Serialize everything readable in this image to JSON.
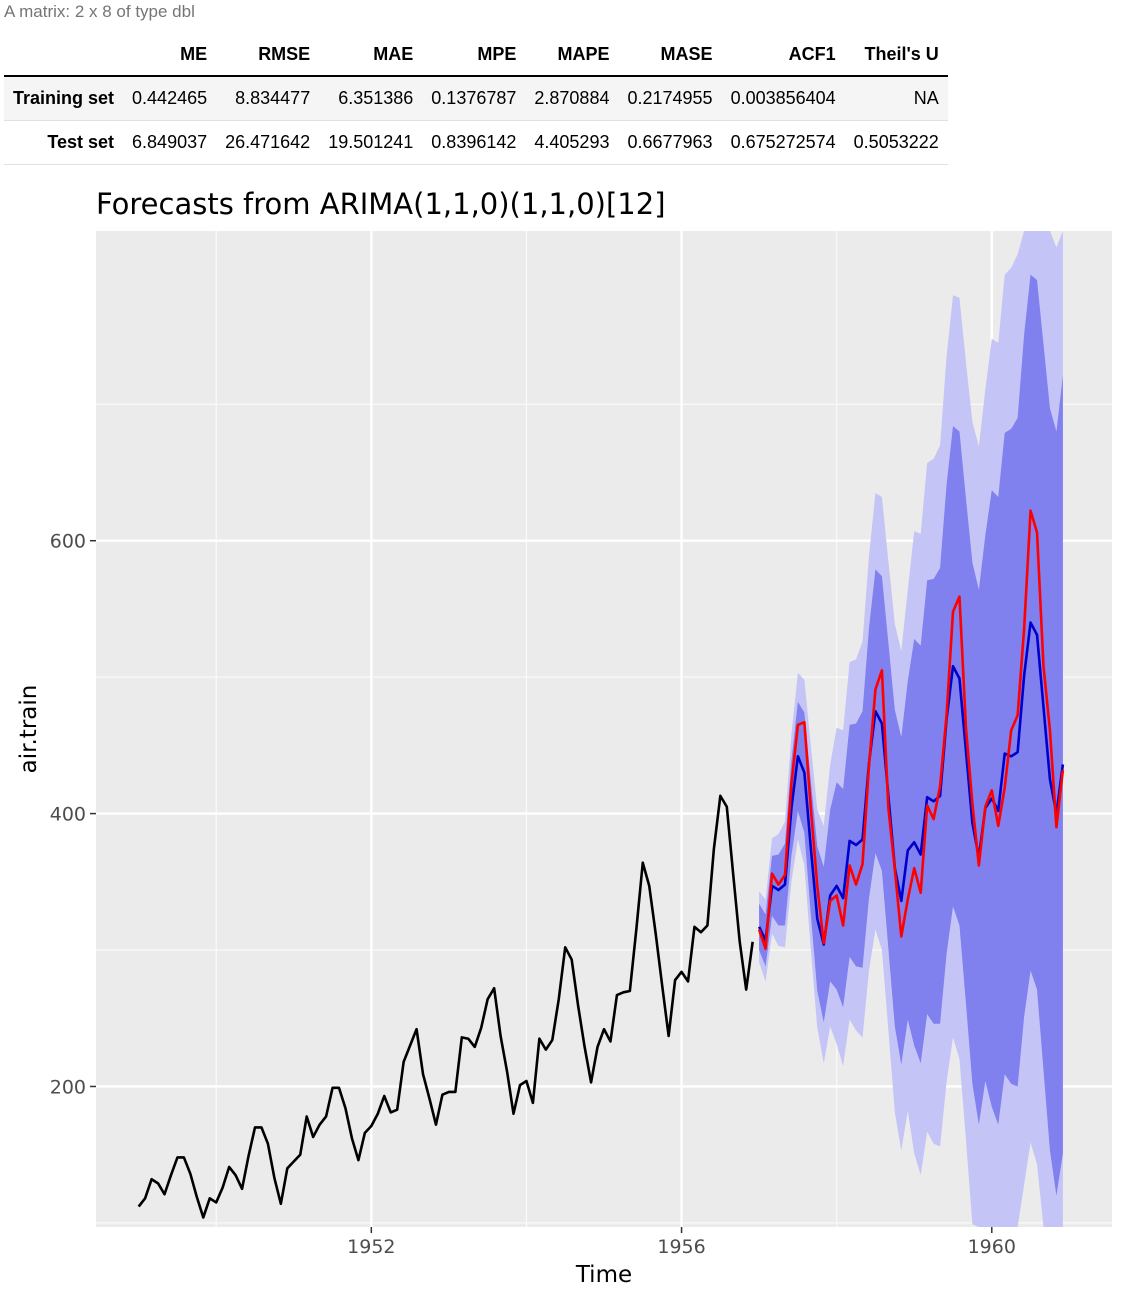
{
  "table": {
    "caption": "A matrix: 2 x 8 of type dbl",
    "columns": [
      "",
      "ME",
      "RMSE",
      "MAE",
      "MPE",
      "MAPE",
      "MASE",
      "ACF1",
      "Theil's U"
    ],
    "rows": [
      {
        "name": "Training set",
        "cells": [
          "0.442465",
          "8.834477",
          "6.351386",
          "0.1376787",
          "2.870884",
          "0.2174955",
          "0.003856404",
          "NA"
        ]
      },
      {
        "name": "Test set",
        "cells": [
          "6.849037",
          "26.471642",
          "19.501241",
          "0.8396142",
          "4.405293",
          "0.6677963",
          "0.675272574",
          "0.5053222"
        ]
      }
    ]
  },
  "chart_data": {
    "type": "line",
    "title": "Forecasts from ARIMA(1,1,0)(1,1,0)[12]",
    "xlabel": "Time",
    "ylabel": "air.train",
    "xlim": [
      1948.45,
      1961.55
    ],
    "ylim": [
      97,
      827
    ],
    "x_ticks": [
      1952,
      1956,
      1960
    ],
    "y_ticks": [
      200,
      400,
      600
    ],
    "x_start": 1949.0,
    "x_step": 0.08333333,
    "grid": true,
    "series": [
      {
        "name": "",
        "color": "#000000",
        "start": 1949.0,
        "values": [
          112,
          118,
          132,
          129,
          121,
          135,
          148,
          148,
          136,
          119,
          104,
          118,
          115,
          126,
          141,
          135,
          125,
          149,
          170,
          170,
          158,
          133,
          114,
          140,
          145,
          150,
          178,
          163,
          172,
          178,
          199,
          199,
          184,
          162,
          146,
          166,
          171,
          180,
          193,
          181,
          183,
          218,
          230,
          242,
          209,
          191,
          172,
          194,
          196,
          196,
          236,
          235,
          229,
          243,
          264,
          272,
          237,
          211,
          180,
          201,
          204,
          188,
          235,
          227,
          234,
          264,
          302,
          293,
          259,
          229,
          203,
          229,
          242,
          233,
          267,
          269,
          270,
          315,
          364,
          347,
          312,
          274,
          237,
          278,
          284,
          277,
          317,
          313,
          318,
          374,
          413,
          405,
          355,
          306,
          271,
          306
        ]
      },
      {
        "name": "",
        "color": "#0000cc",
        "start": 1957.0,
        "values": [
          317,
          307,
          347,
          344,
          348,
          404,
          442,
          430,
          375,
          323,
          304,
          340,
          347,
          338,
          380,
          377,
          381,
          437,
          475,
          466,
          413,
          360,
          336,
          373,
          379,
          370,
          412,
          409,
          413,
          469,
          508,
          499,
          446,
          393,
          368,
          404,
          411,
          402,
          444,
          442,
          445,
          501,
          540,
          531,
          478,
          425,
          400,
          436
        ]
      },
      {
        "name": "",
        "color": "#ff0000",
        "start": 1957.0,
        "values": [
          315,
          301,
          356,
          348,
          355,
          422,
          465,
          467,
          404,
          347,
          305,
          336,
          340,
          318,
          362,
          348,
          363,
          435,
          491,
          505,
          404,
          359,
          310,
          337,
          360,
          342,
          406,
          396,
          420,
          472,
          548,
          559,
          463,
          407,
          362,
          405,
          417,
          391,
          419,
          461,
          472,
          535,
          622,
          606,
          508,
          461,
          390,
          432
        ]
      }
    ],
    "interval80_low": [
      300,
      288,
      325,
      318,
      318,
      369,
      402,
      386,
      326,
      270,
      247,
      277,
      271,
      258,
      295,
      288,
      287,
      338,
      371,
      358,
      301,
      244,
      216,
      249,
      230,
      217,
      253,
      246,
      246,
      297,
      332,
      318,
      261,
      202,
      172,
      204,
      185,
      172,
      209,
      202,
      200,
      251,
      285,
      271,
      212,
      153,
      120,
      151
    ],
    "interval80_high": [
      334,
      326,
      369,
      370,
      378,
      439,
      482,
      474,
      424,
      376,
      361,
      403,
      423,
      418,
      465,
      466,
      475,
      536,
      579,
      574,
      525,
      476,
      456,
      497,
      528,
      523,
      571,
      572,
      580,
      641,
      684,
      680,
      631,
      584,
      564,
      604,
      637,
      632,
      679,
      682,
      690,
      751,
      795,
      791,
      744,
      697,
      680,
      721
    ],
    "interval95_low": [
      291,
      277,
      312,
      303,
      302,
      350,
      381,
      362,
      300,
      243,
      217,
      244,
      231,
      215,
      249,
      241,
      236,
      285,
      315,
      300,
      241,
      181,
      153,
      182,
      151,
      135,
      167,
      158,
      156,
      203,
      236,
      220,
      161,
      99,
      67,
      97,
      74,
      59,
      93,
      84,
      80,
      128,
      159,
      143,
      81,
      20,
      -15,
      15
    ],
    "interval95_high": [
      343,
      337,
      382,
      385,
      394,
      458,
      503,
      498,
      450,
      403,
      391,
      436,
      463,
      461,
      511,
      513,
      526,
      589,
      635,
      632,
      585,
      539,
      519,
      564,
      607,
      605,
      657,
      660,
      670,
      735,
      780,
      778,
      731,
      687,
      669,
      711,
      748,
      745,
      795,
      800,
      810,
      874,
      921,
      919,
      875,
      830,
      815,
      857
    ],
    "fan_colors": {
      "interval80": "#8080ee",
      "interval95": "#c4c4f7"
    },
    "panel_bg": "#ebebeb"
  }
}
